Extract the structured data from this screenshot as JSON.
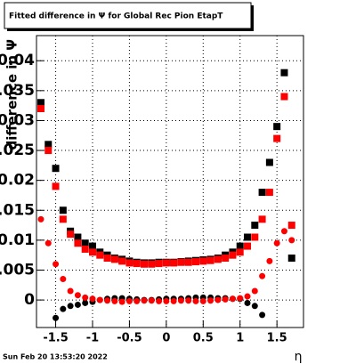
{
  "chart_data": {
    "type": "scatter",
    "title": "Fitted difference in  Ψ  for Global Rec Pion EtapT",
    "y_label": "difference in Ψ",
    "x_label": "η",
    "timestamp": "Sun Feb 20 13:53:20 2022",
    "grid": true,
    "xlim": [
      -1.76,
      1.86
    ],
    "ylim": [
      -0.0046,
      0.0442
    ],
    "xticks": [
      -1.5,
      -1,
      -0.5,
      0,
      0.5,
      1,
      1.5
    ],
    "yticks": [
      0,
      0.005,
      0.01,
      0.015,
      0.02,
      0.025,
      0.03,
      0.035,
      0.04
    ],
    "x": [
      -1.7,
      -1.6,
      -1.5,
      -1.4,
      -1.3,
      -1.2,
      -1.1,
      -1.0,
      -0.9,
      -0.8,
      -0.7,
      -0.6,
      -0.5,
      -0.4,
      -0.3,
      -0.2,
      -0.1,
      0,
      0.1,
      0.2,
      0.3,
      0.4,
      0.5,
      0.6,
      0.7,
      0.8,
      0.9,
      1.0,
      1.1,
      1.2,
      1.3,
      1.4,
      1.5,
      1.6,
      1.7
    ],
    "series": [
      {
        "color": "#000000",
        "marker": "square",
        "values": [
          0.033,
          0.026,
          0.022,
          0.015,
          0.0115,
          0.0105,
          0.0095,
          0.009,
          0.008,
          0.0075,
          0.007,
          0.0068,
          0.0065,
          0.0063,
          0.0062,
          0.0062,
          0.0063,
          0.0063,
          0.0063,
          0.0064,
          0.0065,
          0.0066,
          0.0067,
          0.0068,
          0.007,
          0.0075,
          0.008,
          0.009,
          0.0105,
          0.0125,
          0.018,
          0.023,
          0.029,
          0.038,
          0.007
        ]
      },
      {
        "color": "#000000",
        "marker": "circle",
        "values": [
          null,
          null,
          -0.003,
          -0.0015,
          -0.001,
          -0.0008,
          -0.0005,
          -0.0003,
          0,
          0.0002,
          0.0003,
          0.0003,
          0.0002,
          0.0001,
          0,
          0,
          0.0001,
          0.0002,
          0.0002,
          0.0002,
          0.0003,
          0.0004,
          0.0004,
          0.0004,
          0.0003,
          0.0003,
          0.0002,
          0.0002,
          -0.0005,
          -0.001,
          -0.0025,
          null,
          null,
          null,
          null
        ]
      },
      {
        "color": "#ff0000",
        "marker": "square",
        "values": [
          0.032,
          0.025,
          0.019,
          0.0135,
          0.011,
          0.0095,
          0.0085,
          0.008,
          0.0075,
          0.007,
          0.0068,
          0.0065,
          0.0062,
          0.0061,
          0.006,
          0.006,
          0.0061,
          0.0062,
          0.0062,
          0.0063,
          0.0063,
          0.0064,
          0.0065,
          0.0066,
          0.0068,
          0.007,
          0.0075,
          0.008,
          0.009,
          0.0105,
          0.0135,
          0.018,
          0.027,
          0.034,
          0.0125
        ]
      },
      {
        "color": "#ff0000",
        "marker": "circle",
        "values": [
          0.0135,
          0.0095,
          0.006,
          0.0035,
          0.0015,
          0.0008,
          0.0004,
          0.0002,
          0,
          -0.0001,
          -0.0002,
          -0.0003,
          -0.0002,
          -0.0002,
          -0.0001,
          -0.0001,
          -0.0002,
          -0.0002,
          -0.0002,
          -0.0001,
          -0.0001,
          -0.0002,
          -0.0002,
          -0.0001,
          0,
          0.0001,
          0.0002,
          0.0003,
          0.0006,
          0.0015,
          0.004,
          0.0065,
          0.0095,
          0.0115,
          0.01
        ]
      }
    ]
  }
}
